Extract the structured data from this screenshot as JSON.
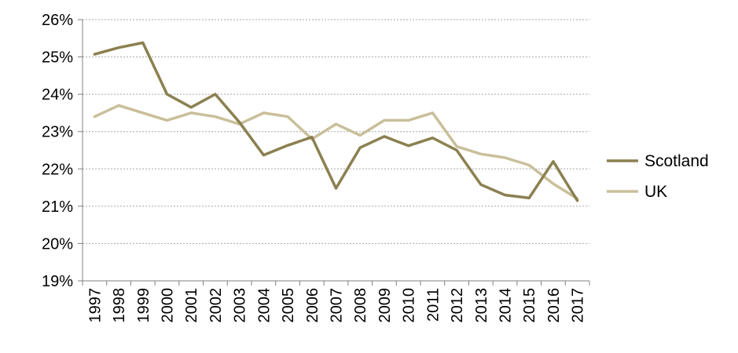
{
  "chart_data": {
    "type": "line",
    "title": "",
    "xlabel": "",
    "ylabel": "",
    "categories": [
      "1997",
      "1998",
      "1999",
      "2000",
      "2001",
      "2002",
      "2003",
      "2004",
      "2005",
      "2006",
      "2007",
      "2008",
      "2009",
      "2010",
      "2011",
      "2012",
      "2013",
      "2014",
      "2015",
      "2016",
      "2017"
    ],
    "y_ticks": [
      "19%",
      "20%",
      "21%",
      "22%",
      "23%",
      "24%",
      "25%",
      "26%"
    ],
    "ylim": [
      19,
      26
    ],
    "grid": true,
    "legend_position": "right",
    "series": [
      {
        "name": "Scotland",
        "color": "#8B8050",
        "values": [
          25.07,
          25.25,
          25.38,
          24.0,
          23.65,
          24.0,
          23.25,
          22.37,
          22.63,
          22.85,
          21.48,
          22.57,
          22.87,
          22.62,
          22.83,
          22.5,
          21.58,
          21.3,
          21.22,
          22.2,
          21.15
        ]
      },
      {
        "name": "UK",
        "color": "#C9BF9A",
        "values": [
          23.4,
          23.7,
          23.5,
          23.3,
          23.5,
          23.4,
          23.2,
          23.5,
          23.4,
          22.8,
          23.2,
          22.9,
          23.3,
          23.3,
          23.5,
          22.6,
          22.4,
          22.3,
          22.1,
          21.6,
          21.2
        ]
      }
    ]
  }
}
